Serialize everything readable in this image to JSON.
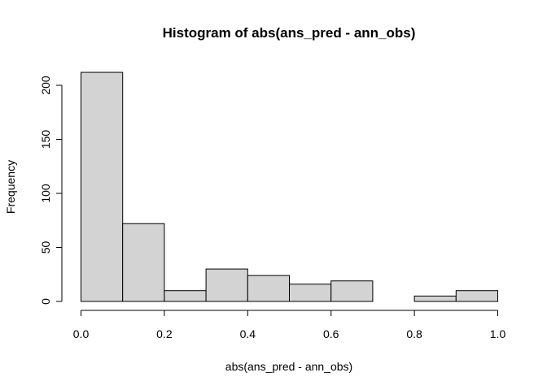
{
  "chart_data": {
    "type": "bar",
    "title": "Histogram of abs(ans_pred - ann_obs)",
    "xlabel": "abs(ans_pred - ann_obs)",
    "ylabel": "Frequency",
    "bins": [
      {
        "x0": 0.0,
        "x1": 0.1,
        "count": 212
      },
      {
        "x0": 0.1,
        "x1": 0.2,
        "count": 72
      },
      {
        "x0": 0.2,
        "x1": 0.3,
        "count": 10
      },
      {
        "x0": 0.3,
        "x1": 0.4,
        "count": 30
      },
      {
        "x0": 0.4,
        "x1": 0.5,
        "count": 24
      },
      {
        "x0": 0.5,
        "x1": 0.6,
        "count": 16
      },
      {
        "x0": 0.6,
        "x1": 0.7,
        "count": 19
      },
      {
        "x0": 0.7,
        "x1": 0.8,
        "count": 0
      },
      {
        "x0": 0.8,
        "x1": 0.9,
        "count": 5
      },
      {
        "x0": 0.9,
        "x1": 1.0,
        "count": 10
      }
    ],
    "xlim": [
      0,
      1
    ],
    "ylim": [
      0,
      200
    ],
    "xticks": [
      "0.0",
      "0.2",
      "0.4",
      "0.6",
      "0.8",
      "1.0"
    ],
    "yticks": [
      "0",
      "50",
      "100",
      "150",
      "200"
    ],
    "grid": false,
    "legend": "none",
    "colors": {
      "bar_fill": "#d3d3d3",
      "bar_stroke": "#000000"
    }
  }
}
